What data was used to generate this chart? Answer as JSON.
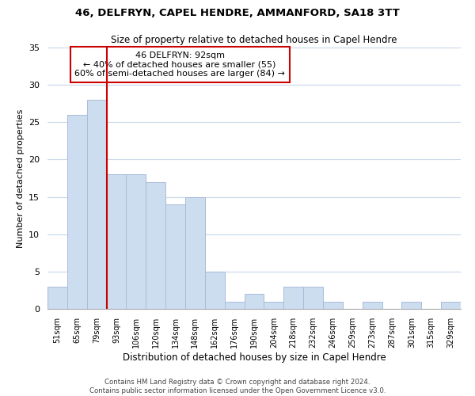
{
  "title1": "46, DELFRYN, CAPEL HENDRE, AMMANFORD, SA18 3TT",
  "title2": "Size of property relative to detached houses in Capel Hendre",
  "xlabel": "Distribution of detached houses by size in Capel Hendre",
  "ylabel": "Number of detached properties",
  "bar_labels": [
    "51sqm",
    "65sqm",
    "79sqm",
    "93sqm",
    "106sqm",
    "120sqm",
    "134sqm",
    "148sqm",
    "162sqm",
    "176sqm",
    "190sqm",
    "204sqm",
    "218sqm",
    "232sqm",
    "246sqm",
    "259sqm",
    "273sqm",
    "287sqm",
    "301sqm",
    "315sqm",
    "329sqm"
  ],
  "bar_values": [
    3,
    26,
    28,
    18,
    18,
    17,
    14,
    15,
    5,
    1,
    2,
    1,
    3,
    3,
    1,
    0,
    1,
    0,
    1,
    0,
    1
  ],
  "bar_color": "#ccddf0",
  "bar_edge_color": "#aabbd8",
  "vline_color": "#cc0000",
  "ylim": [
    0,
    35
  ],
  "yticks": [
    0,
    5,
    10,
    15,
    20,
    25,
    30,
    35
  ],
  "annotation_title": "46 DELFRYN: 92sqm",
  "annotation_line1": "← 40% of detached houses are smaller (55)",
  "annotation_line2": "60% of semi-detached houses are larger (84) →",
  "annotation_box_color": "#ffffff",
  "annotation_box_edge": "#cc0000",
  "footer1": "Contains HM Land Registry data © Crown copyright and database right 2024.",
  "footer2": "Contains public sector information licensed under the Open Government Licence v3.0.",
  "background_color": "#ffffff",
  "grid_color": "#c8d8e8"
}
